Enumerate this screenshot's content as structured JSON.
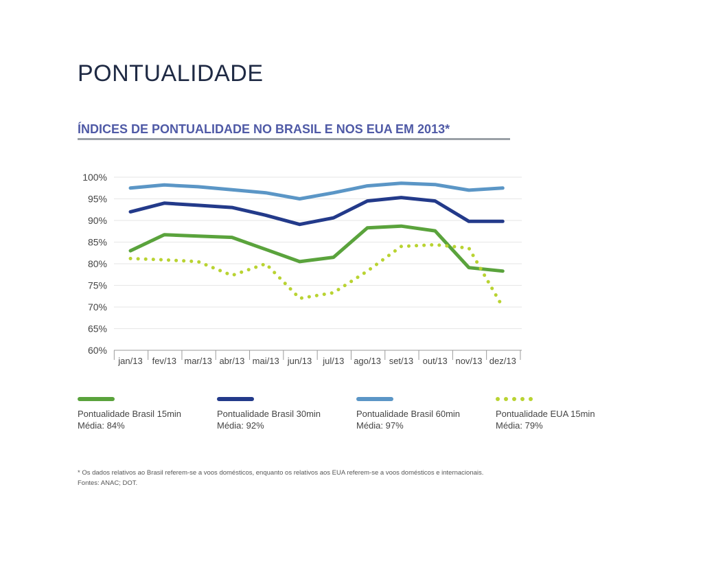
{
  "page": {
    "title": "PONTUALIDADE"
  },
  "chart_data": {
    "type": "line",
    "title": "ÍNDICES DE PONTUALIDADE NO BRASIL E NOS EUA EM 2013*",
    "categories": [
      "jan/13",
      "fev/13",
      "mar/13",
      "abr/13",
      "mai/13",
      "jun/13",
      "jul/13",
      "ago/13",
      "set/13",
      "out/13",
      "nov/13",
      "dez/13"
    ],
    "y_ticks": [
      "100%",
      "95%",
      "90%",
      "85%",
      "80%",
      "75%",
      "70%",
      "65%",
      "60%"
    ],
    "ylim": [
      60,
      100
    ],
    "grid": true,
    "legend_position": "bottom",
    "series": [
      {
        "name": "Pontualidade Brasil 15min",
        "average": "Média: 84%",
        "color": "#5aa33c",
        "style": "solid",
        "values": [
          83,
          86.7,
          86.4,
          86.1,
          83.3,
          80.5,
          81.5,
          88.3,
          88.7,
          87.6,
          79.1,
          78.3
        ]
      },
      {
        "name": "Pontualidade Brasil 30min",
        "average": "Média: 92%",
        "color": "#233a8a",
        "style": "solid",
        "values": [
          92,
          94,
          93.5,
          93,
          91.2,
          89.1,
          90.6,
          94.5,
          95.3,
          94.5,
          89.8,
          89.8
        ]
      },
      {
        "name": "Pontualidade Brasil 60min",
        "average": "Média: 97%",
        "color": "#5b96c6",
        "style": "solid",
        "values": [
          97.5,
          98.2,
          97.8,
          97.1,
          96.4,
          95,
          96.4,
          98,
          98.6,
          98.3,
          97,
          97.5
        ]
      },
      {
        "name": "Pontualidade EUA 15min",
        "average": "Média: 79%",
        "color": "#b9d332",
        "style": "dotted",
        "values": [
          81.2,
          80.9,
          80.5,
          77.3,
          80,
          72,
          73.3,
          78.3,
          84,
          84.4,
          83.6,
          70
        ]
      }
    ]
  },
  "footnote": {
    "line1": "* Os dados relativos ao Brasil referem-se a voos domésticos, enquanto os relativos aos EUA referem-se a voos domésticos e internacionais.",
    "line2": "Fontes: ANAC; DOT."
  }
}
